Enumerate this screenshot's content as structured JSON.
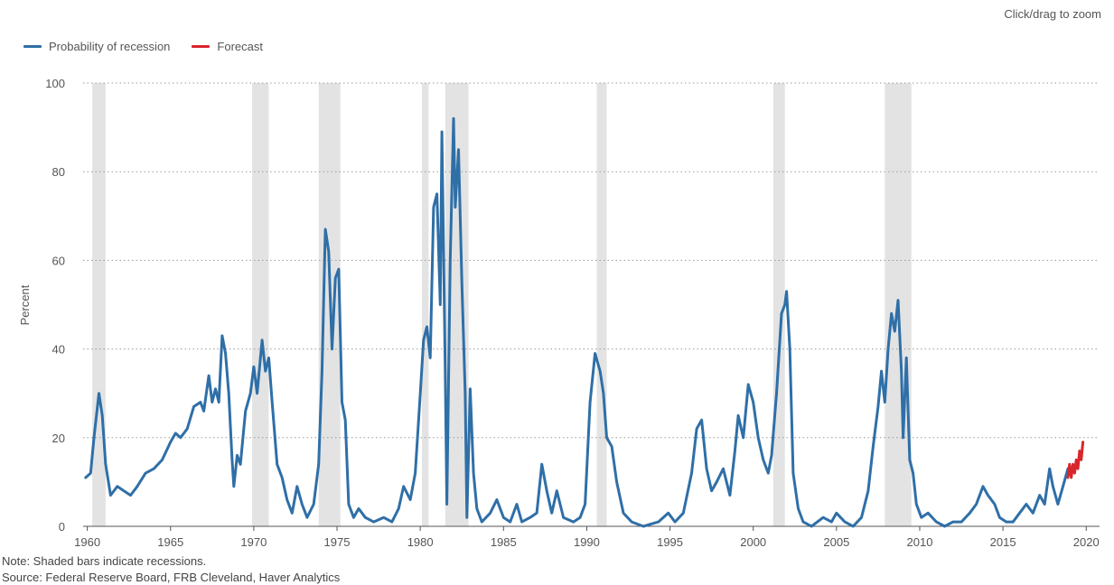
{
  "zoom_hint": "Click/drag to zoom",
  "legend": [
    {
      "label": "Probability of recession",
      "color": "#2f6fa7"
    },
    {
      "label": "Forecast",
      "color": "#d7262c"
    }
  ],
  "note": "Note: Shaded bars indicate recessions.",
  "source": "Source: Federal Reserve Board, FRB Cleveland, Haver Analytics",
  "chart_data": {
    "type": "line",
    "title": "",
    "ylabel": "Percent",
    "xlabel": "",
    "xlim": [
      1959.75,
      2020.8
    ],
    "ylim": [
      0,
      100
    ],
    "yticks": [
      0,
      20,
      40,
      60,
      80,
      100
    ],
    "xticks": [
      1960,
      1965,
      1970,
      1975,
      1980,
      1985,
      1990,
      1995,
      2000,
      2005,
      2010,
      2015,
      2020
    ],
    "grid": "horizontal dotted",
    "legend_position": "top-left",
    "recessions": [
      [
        1960.3,
        1961.1
      ],
      [
        1969.9,
        1970.9
      ],
      [
        1973.9,
        1975.2
      ],
      [
        1980.1,
        1980.5
      ],
      [
        1981.5,
        1982.9
      ],
      [
        1990.6,
        1991.2
      ],
      [
        2001.2,
        2001.9
      ],
      [
        2007.9,
        2009.5
      ]
    ],
    "series": [
      {
        "name": "Probability of recession",
        "color": "#2f6fa7",
        "points": [
          [
            1959.9,
            11
          ],
          [
            1960.2,
            12
          ],
          [
            1960.4,
            20
          ],
          [
            1960.7,
            30
          ],
          [
            1960.9,
            25
          ],
          [
            1961.1,
            14
          ],
          [
            1961.4,
            7
          ],
          [
            1961.8,
            9
          ],
          [
            1962.2,
            8
          ],
          [
            1962.6,
            7
          ],
          [
            1963.0,
            9
          ],
          [
            1963.5,
            12
          ],
          [
            1964.0,
            13
          ],
          [
            1964.5,
            15
          ],
          [
            1965.0,
            19
          ],
          [
            1965.3,
            21
          ],
          [
            1965.6,
            20
          ],
          [
            1966.0,
            22
          ],
          [
            1966.4,
            27
          ],
          [
            1966.8,
            28
          ],
          [
            1967.0,
            26
          ],
          [
            1967.3,
            34
          ],
          [
            1967.5,
            28
          ],
          [
            1967.7,
            31
          ],
          [
            1967.9,
            28
          ],
          [
            1968.1,
            43
          ],
          [
            1968.3,
            39
          ],
          [
            1968.5,
            30
          ],
          [
            1968.7,
            15
          ],
          [
            1968.8,
            9
          ],
          [
            1969.0,
            16
          ],
          [
            1969.2,
            14
          ],
          [
            1969.5,
            26
          ],
          [
            1969.8,
            30
          ],
          [
            1970.0,
            36
          ],
          [
            1970.2,
            30
          ],
          [
            1970.5,
            42
          ],
          [
            1970.7,
            35
          ],
          [
            1970.9,
            38
          ],
          [
            1971.1,
            28
          ],
          [
            1971.4,
            14
          ],
          [
            1971.7,
            11
          ],
          [
            1972.0,
            6
          ],
          [
            1972.3,
            3
          ],
          [
            1972.6,
            9
          ],
          [
            1972.9,
            5
          ],
          [
            1973.2,
            2
          ],
          [
            1973.6,
            5
          ],
          [
            1973.9,
            14
          ],
          [
            1974.1,
            35
          ],
          [
            1974.3,
            67
          ],
          [
            1974.5,
            62
          ],
          [
            1974.7,
            40
          ],
          [
            1974.9,
            56
          ],
          [
            1975.1,
            58
          ],
          [
            1975.3,
            28
          ],
          [
            1975.5,
            24
          ],
          [
            1975.7,
            5
          ],
          [
            1976.0,
            2
          ],
          [
            1976.3,
            4
          ],
          [
            1976.7,
            2
          ],
          [
            1977.2,
            1
          ],
          [
            1977.8,
            2
          ],
          [
            1978.3,
            1
          ],
          [
            1978.7,
            4
          ],
          [
            1979.0,
            9
          ],
          [
            1979.4,
            6
          ],
          [
            1979.7,
            12
          ],
          [
            1980.0,
            30
          ],
          [
            1980.2,
            42
          ],
          [
            1980.4,
            45
          ],
          [
            1980.6,
            38
          ],
          [
            1980.8,
            72
          ],
          [
            1981.0,
            75
          ],
          [
            1981.2,
            50
          ],
          [
            1981.3,
            89
          ],
          [
            1981.5,
            35
          ],
          [
            1981.6,
            5
          ],
          [
            1981.8,
            60
          ],
          [
            1982.0,
            92
          ],
          [
            1982.1,
            72
          ],
          [
            1982.3,
            85
          ],
          [
            1982.5,
            55
          ],
          [
            1982.7,
            30
          ],
          [
            1982.8,
            2
          ],
          [
            1983.0,
            31
          ],
          [
            1983.2,
            12
          ],
          [
            1983.4,
            4
          ],
          [
            1983.7,
            1
          ],
          [
            1984.2,
            3
          ],
          [
            1984.6,
            6
          ],
          [
            1985.0,
            2
          ],
          [
            1985.4,
            1
          ],
          [
            1985.8,
            5
          ],
          [
            1986.1,
            1
          ],
          [
            1986.6,
            2
          ],
          [
            1987.0,
            3
          ],
          [
            1987.3,
            14
          ],
          [
            1987.6,
            8
          ],
          [
            1987.9,
            3
          ],
          [
            1988.2,
            8
          ],
          [
            1988.6,
            2
          ],
          [
            1989.2,
            1
          ],
          [
            1989.6,
            2
          ],
          [
            1989.9,
            5
          ],
          [
            1990.2,
            28
          ],
          [
            1990.5,
            39
          ],
          [
            1990.8,
            35
          ],
          [
            1991.0,
            30
          ],
          [
            1991.2,
            20
          ],
          [
            1991.5,
            18
          ],
          [
            1991.8,
            10
          ],
          [
            1992.2,
            3
          ],
          [
            1992.7,
            1
          ],
          [
            1993.4,
            0
          ],
          [
            1994.3,
            1
          ],
          [
            1994.9,
            3
          ],
          [
            1995.3,
            1
          ],
          [
            1995.8,
            3
          ],
          [
            1996.3,
            12
          ],
          [
            1996.6,
            22
          ],
          [
            1996.9,
            24
          ],
          [
            1997.2,
            13
          ],
          [
            1997.5,
            8
          ],
          [
            1997.8,
            10
          ],
          [
            1998.2,
            13
          ],
          [
            1998.6,
            7
          ],
          [
            1998.9,
            17
          ],
          [
            1999.1,
            25
          ],
          [
            1999.4,
            20
          ],
          [
            1999.7,
            32
          ],
          [
            2000.0,
            28
          ],
          [
            2000.3,
            20
          ],
          [
            2000.6,
            15
          ],
          [
            2000.9,
            12
          ],
          [
            2001.1,
            16
          ],
          [
            2001.4,
            30
          ],
          [
            2001.7,
            48
          ],
          [
            2001.9,
            50
          ],
          [
            2002.0,
            53
          ],
          [
            2002.2,
            40
          ],
          [
            2002.4,
            12
          ],
          [
            2002.7,
            4
          ],
          [
            2003.0,
            1
          ],
          [
            2003.5,
            0
          ],
          [
            2004.2,
            2
          ],
          [
            2004.7,
            1
          ],
          [
            2005.0,
            3
          ],
          [
            2005.5,
            1
          ],
          [
            2006.0,
            0
          ],
          [
            2006.5,
            2
          ],
          [
            2006.9,
            8
          ],
          [
            2007.2,
            18
          ],
          [
            2007.5,
            27
          ],
          [
            2007.7,
            35
          ],
          [
            2007.9,
            28
          ],
          [
            2008.1,
            40
          ],
          [
            2008.3,
            48
          ],
          [
            2008.5,
            44
          ],
          [
            2008.7,
            51
          ],
          [
            2008.9,
            35
          ],
          [
            2009.0,
            20
          ],
          [
            2009.2,
            38
          ],
          [
            2009.4,
            15
          ],
          [
            2009.6,
            12
          ],
          [
            2009.8,
            5
          ],
          [
            2010.1,
            2
          ],
          [
            2010.5,
            3
          ],
          [
            2011.0,
            1
          ],
          [
            2011.5,
            0
          ],
          [
            2012.0,
            1
          ],
          [
            2012.5,
            1
          ],
          [
            2013.0,
            3
          ],
          [
            2013.4,
            5
          ],
          [
            2013.8,
            9
          ],
          [
            2014.1,
            7
          ],
          [
            2014.5,
            5
          ],
          [
            2014.8,
            2
          ],
          [
            2015.2,
            1
          ],
          [
            2015.6,
            1
          ],
          [
            2016.0,
            3
          ],
          [
            2016.4,
            5
          ],
          [
            2016.8,
            3
          ],
          [
            2017.2,
            7
          ],
          [
            2017.5,
            5
          ],
          [
            2017.8,
            13
          ],
          [
            2018.0,
            9
          ],
          [
            2018.3,
            5
          ],
          [
            2018.6,
            9
          ],
          [
            2018.9,
            13
          ]
        ]
      },
      {
        "name": "Forecast",
        "color": "#d7262c",
        "points": [
          [
            2018.9,
            11
          ],
          [
            2019.0,
            14
          ],
          [
            2019.1,
            11
          ],
          [
            2019.2,
            14
          ],
          [
            2019.3,
            12
          ],
          [
            2019.4,
            15
          ],
          [
            2019.5,
            13
          ],
          [
            2019.6,
            17
          ],
          [
            2019.7,
            15
          ],
          [
            2019.8,
            19
          ]
        ]
      }
    ]
  }
}
